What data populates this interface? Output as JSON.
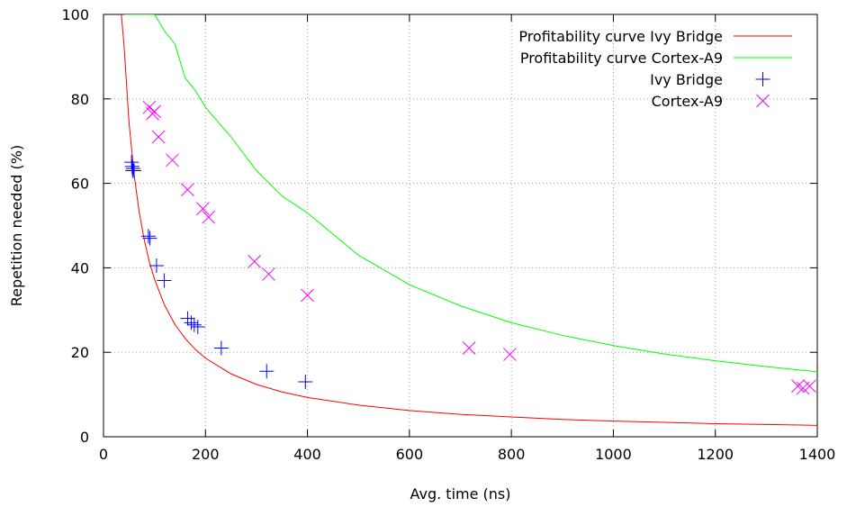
{
  "chart_data": {
    "type": "scatter",
    "xlabel": "Avg. time (ns)",
    "ylabel": "Repetition needed (%)",
    "xlim": [
      0,
      1400
    ],
    "ylim": [
      0,
      100
    ],
    "x_ticks": [
      0,
      200,
      400,
      600,
      800,
      1000,
      1200,
      1400
    ],
    "y_ticks": [
      0,
      20,
      40,
      60,
      80,
      100
    ],
    "grid": true,
    "legend_position": "top-right",
    "curves": [
      {
        "name": "Profitability curve Ivy Bridge",
        "color": "#ff0000",
        "x": [
          35,
          40,
          50,
          60,
          70,
          80,
          90,
          100,
          120,
          140,
          160,
          180,
          200,
          250,
          300,
          350,
          400,
          500,
          600,
          700,
          800,
          900,
          1000,
          1100,
          1200,
          1300,
          1400
        ],
        "y": [
          100,
          93.1,
          74.5,
          62.1,
          53.2,
          46.6,
          41.4,
          37.3,
          31.1,
          26.6,
          23.3,
          20.7,
          18.6,
          14.9,
          12.4,
          10.6,
          9.3,
          7.5,
          6.2,
          5.3,
          4.7,
          4.1,
          3.7,
          3.4,
          3.1,
          2.9,
          2.7
        ]
      },
      {
        "name": "Profitability curve Cortex-A9",
        "color": "#00ff00",
        "x": [
          40,
          50,
          60,
          80,
          100,
          120,
          140,
          160,
          180,
          200,
          250,
          300,
          350,
          400,
          500,
          600,
          700,
          800,
          900,
          1000,
          1100,
          1200,
          1300,
          1400
        ],
        "y": [
          100,
          100,
          100,
          100,
          100,
          96,
          93,
          85,
          82,
          78,
          71,
          63,
          57,
          53,
          43,
          36,
          31,
          27,
          24,
          21.6,
          19.6,
          18,
          16.6,
          15.4
        ]
      }
    ],
    "series": [
      {
        "name": "Ivy Bridge",
        "marker": "plus",
        "color": "#0000ff",
        "x": [
          55,
          56,
          57,
          58,
          60,
          88,
          91,
          104,
          119,
          165,
          172,
          178,
          185,
          231,
          320,
          396
        ],
        "y": [
          65,
          64,
          63,
          63.5,
          63,
          47.5,
          47,
          40.5,
          37,
          28,
          27,
          26.5,
          26,
          21,
          15.5,
          13
        ]
      },
      {
        "name": "Cortex-A9",
        "marker": "cross",
        "color": "#ff00ff",
        "x": [
          90,
          96,
          100,
          108,
          135,
          165,
          195,
          206,
          296,
          324,
          400,
          717,
          797,
          1362,
          1372,
          1385
        ],
        "y": [
          78,
          76.5,
          77,
          71,
          65.5,
          58.5,
          54,
          52,
          41.5,
          38.5,
          33.5,
          21,
          19.5,
          12,
          11.5,
          12
        ]
      }
    ]
  }
}
